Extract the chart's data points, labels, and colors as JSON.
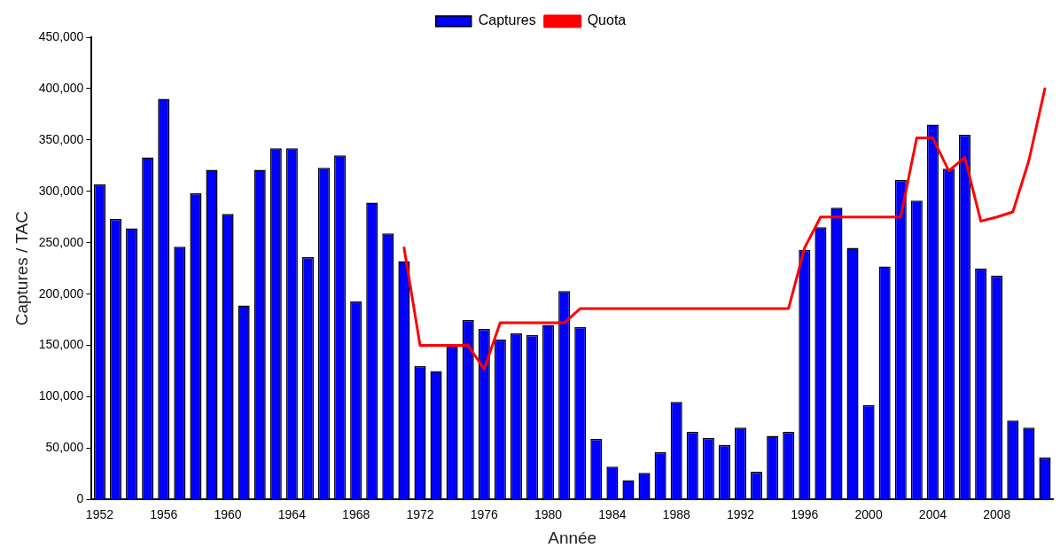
{
  "chart_data": {
    "type": "bar",
    "xlabel": "Année",
    "ylabel": "Captures / TAC",
    "categories": [
      "1952",
      null,
      null,
      null,
      "1956",
      null,
      null,
      null,
      "1960",
      null,
      null,
      null,
      "1964",
      null,
      null,
      null,
      "1968",
      null,
      null,
      null,
      "1972",
      null,
      null,
      null,
      "1976",
      null,
      null,
      null,
      "1980",
      null,
      null,
      null,
      "1984",
      null,
      null,
      null,
      "1988",
      null,
      null,
      null,
      "1992",
      null,
      null,
      null,
      "1996",
      null,
      null,
      null,
      "2000",
      null,
      null,
      null,
      "2004",
      null,
      null,
      null,
      "2008",
      null,
      null,
      null
    ],
    "series": [
      {
        "name": "Captures",
        "color": "#0000ff",
        "values": [
          307000,
          273000,
          264000,
          333000,
          390000,
          246000,
          298000,
          321000,
          278000,
          189000,
          321000,
          342000,
          342000,
          236000,
          323000,
          335000,
          193000,
          289000,
          259000,
          232000,
          130000,
          125000,
          150000,
          175000,
          166000,
          156000,
          162000,
          160000,
          170000,
          203000,
          168000,
          59000,
          32000,
          19000,
          26000,
          46000,
          95000,
          66000,
          60000,
          53000,
          70000,
          27000,
          62000,
          66000,
          243000,
          265000,
          284000,
          245000,
          92000,
          227000,
          311000,
          291000,
          365000,
          322000,
          355000,
          225000,
          218000,
          77000,
          70000,
          41000
        ]
      },
      {
        "name": "Quota",
        "type": "line",
        "color": "#ff0000",
        "values": [
          null,
          null,
          null,
          null,
          null,
          null,
          null,
          null,
          null,
          null,
          null,
          null,
          null,
          null,
          null,
          null,
          null,
          null,
          null,
          245000,
          150000,
          150000,
          150000,
          150000,
          127000,
          172000,
          172000,
          172000,
          172000,
          172000,
          186000,
          186000,
          186000,
          186000,
          186000,
          186000,
          186000,
          186000,
          186000,
          186000,
          186000,
          186000,
          186000,
          186000,
          245000,
          275000,
          275000,
          275000,
          275000,
          275000,
          275000,
          352000,
          352000,
          320000,
          333000,
          271000,
          275000,
          280000,
          330000,
          400000
        ]
      }
    ],
    "ylim": [
      0,
      450000
    ],
    "yticks": [
      {
        "value": 0,
        "label": "0"
      },
      {
        "value": 50000,
        "label": "50,000"
      },
      {
        "value": 100000,
        "label": "100,000"
      },
      {
        "value": 150000,
        "label": "150,000"
      },
      {
        "value": 200000,
        "label": "200,000"
      },
      {
        "value": 250000,
        "label": "250,000"
      },
      {
        "value": 300000,
        "label": "300,000"
      },
      {
        "value": 350000,
        "label": "350,000"
      },
      {
        "value": 400000,
        "label": "400,000"
      },
      {
        "value": 450000,
        "label": "450,000"
      }
    ],
    "grid": false,
    "legend": "top",
    "marker": "none",
    "line_style": "solid"
  }
}
